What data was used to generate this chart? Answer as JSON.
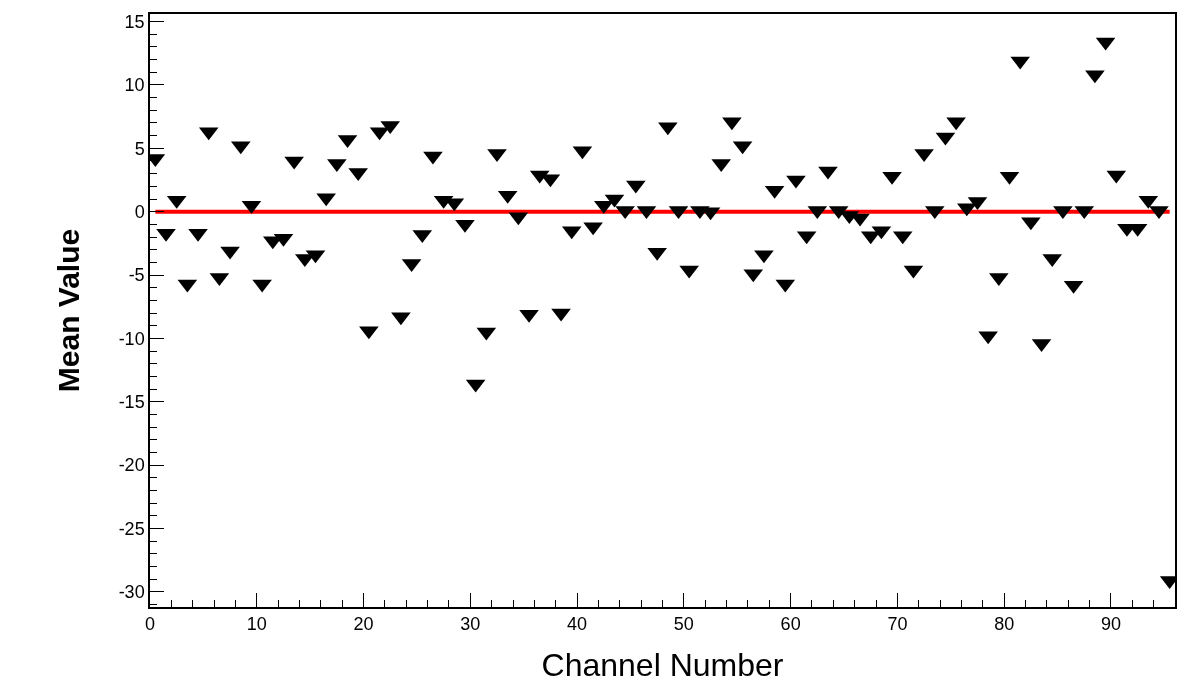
{
  "chart_data": {
    "type": "scatter",
    "xlabel": "Channel Number",
    "ylabel": "Mean Value",
    "x": [
      0.5,
      1.5,
      2.5,
      3.5,
      4.5,
      5.5,
      6.5,
      7.5,
      8.5,
      9.5,
      10.5,
      11.5,
      12.5,
      13.5,
      14.5,
      15.5,
      16.5,
      17.5,
      18.5,
      19.5,
      20.5,
      21.5,
      22.5,
      23.5,
      24.5,
      25.5,
      26.5,
      27.5,
      28.5,
      29.5,
      30.5,
      31.5,
      32.5,
      33.5,
      34.5,
      35.5,
      36.5,
      37.5,
      38.5,
      39.5,
      40.5,
      41.5,
      42.5,
      43.5,
      44.5,
      45.5,
      46.5,
      47.5,
      48.5,
      49.5,
      50.5,
      51.5,
      52.5,
      53.5,
      54.5,
      55.5,
      56.5,
      57.5,
      58.5,
      59.5,
      60.5,
      61.5,
      62.5,
      63.5,
      64.5,
      65.5,
      66.5,
      67.5,
      68.5,
      69.5,
      70.5,
      71.5,
      72.5,
      73.5,
      74.5,
      75.5,
      76.5,
      77.5,
      78.5,
      79.5,
      80.5,
      81.5,
      82.5,
      83.5,
      84.5,
      85.5,
      86.5,
      87.5,
      88.5,
      89.5,
      90.5,
      91.5,
      92.5,
      93.5,
      94.5,
      95.5
    ],
    "series": [
      {
        "color": "#000000",
        "values": [
          4.2,
          -1.7,
          0.9,
          -5.7,
          -1.7,
          6.3,
          -5.2,
          -3.1,
          5.2,
          0.5,
          -5.7,
          -2.3,
          -2.1,
          4.0,
          -3.7,
          -3.4,
          1.1,
          3.8,
          5.7,
          3.1,
          -9.4,
          6.3,
          6.8,
          -8.3,
          -4.1,
          -1.8,
          4.4,
          0.9,
          0.7,
          -1.0,
          -13.6,
          -9.5,
          4.6,
          1.3,
          -0.4,
          -8.1,
          2.9,
          2.6,
          -8.0,
          -1.5,
          4.8,
          -1.2,
          0.5,
          1.0,
          0.1,
          2.1,
          0.1,
          -3.2,
          6.7,
          0.1,
          -4.6,
          0.1,
          0.0,
          3.8,
          7.1,
          5.2,
          -4.9,
          -3.4,
          1.7,
          -5.7,
          2.5,
          -1.9,
          0.1,
          3.2,
          0.1,
          -0.3,
          -0.5,
          -1.9,
          -1.5,
          2.8,
          -1.9,
          -4.6,
          4.6,
          0.1,
          5.9,
          7.1,
          0.3,
          0.8,
          -9.8,
          -5.2,
          2.8,
          11.9,
          -0.8,
          -10.4,
          -3.7,
          0.1,
          -5.8,
          0.1,
          10.8,
          13.4,
          2.9,
          -1.3,
          -1.3,
          0.9,
          0.1,
          -29.1
        ]
      }
    ],
    "marker": "triangle",
    "xlim": [
      0,
      96
    ],
    "ylim": [
      -31.2,
      15.6
    ],
    "xticks": [
      0,
      10,
      20,
      30,
      40,
      50,
      60,
      70,
      80,
      90
    ],
    "yticks": [
      -30,
      -25,
      -20,
      -15,
      -10,
      -5,
      0,
      5,
      10,
      15
    ],
    "ref_lines": [
      {
        "axis": "y",
        "value": 0,
        "color": "#ff0000"
      }
    ],
    "grid": false,
    "legend": false
  }
}
